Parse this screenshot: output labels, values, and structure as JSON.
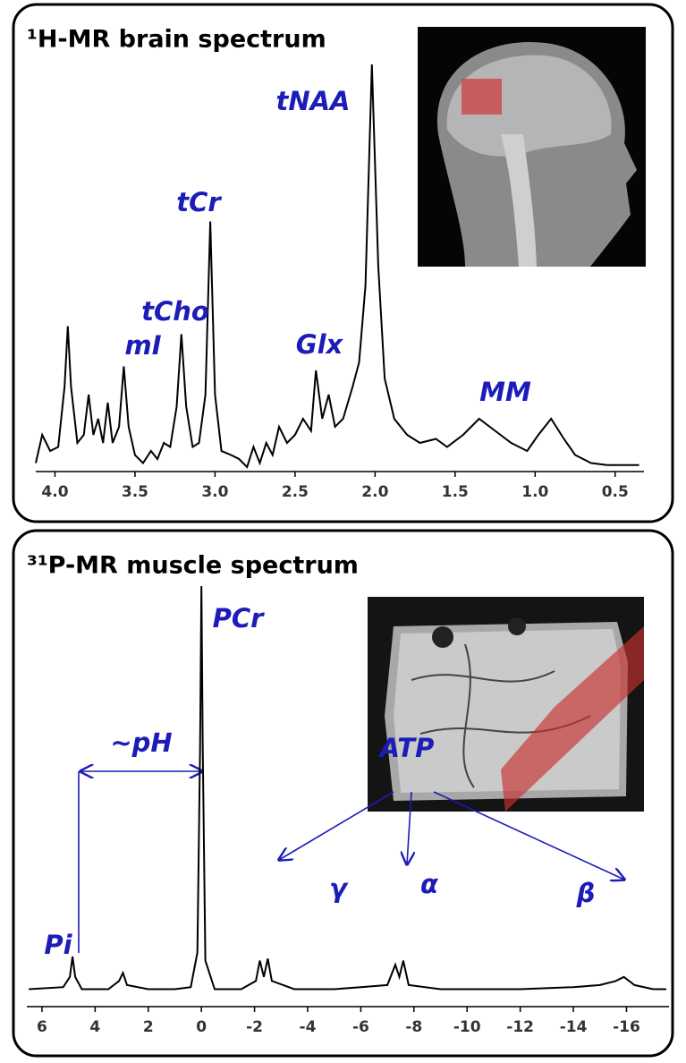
{
  "chart_data": [
    {
      "type": "line",
      "title": "¹H-MR brain spectrum",
      "x": [
        4.12,
        4.08,
        4.03,
        3.98,
        3.94,
        3.92,
        3.9,
        3.86,
        3.82,
        3.79,
        3.76,
        3.73,
        3.7,
        3.67,
        3.64,
        3.6,
        3.57,
        3.54,
        3.5,
        3.45,
        3.4,
        3.36,
        3.32,
        3.28,
        3.24,
        3.21,
        3.18,
        3.14,
        3.1,
        3.06,
        3.03,
        3.0,
        2.96,
        2.9,
        2.85,
        2.8,
        2.76,
        2.72,
        2.68,
        2.64,
        2.6,
        2.55,
        2.5,
        2.45,
        2.4,
        2.37,
        2.33,
        2.29,
        2.25,
        2.2,
        2.14,
        2.1,
        2.06,
        2.02,
        1.98,
        1.94,
        1.88,
        1.8,
        1.72,
        1.62,
        1.55,
        1.45,
        1.35,
        1.25,
        1.15,
        1.05,
        0.98,
        0.9,
        0.82,
        0.75,
        0.65,
        0.55,
        0.45,
        0.35
      ],
      "series": [
        {
          "color": "#000000",
          "values": [
            1,
            8,
            4,
            5,
            20,
            35,
            20,
            6,
            8,
            18,
            8,
            12,
            6,
            16,
            6,
            10,
            25,
            10,
            3,
            1,
            4,
            2,
            6,
            5,
            15,
            33,
            15,
            5,
            6,
            18,
            61,
            18,
            4,
            3,
            2,
            0,
            5,
            1,
            6,
            3,
            10,
            6,
            8,
            12,
            9,
            24,
            12,
            18,
            10,
            12,
            20,
            26,
            45,
            100,
            50,
            22,
            12,
            8,
            6,
            7,
            5,
            8,
            12,
            9,
            6,
            4,
            8,
            12,
            7,
            3,
            1,
            0.5,
            0.5,
            0.5
          ]
        }
      ],
      "xlim": [
        4.12,
        0.32
      ],
      "xticks": [
        {
          "value": 4,
          "label": "4.0"
        },
        3.5,
        {
          "value": 3,
          "label": "3.0"
        },
        2.5,
        {
          "value": 2,
          "label": "2.0"
        },
        1.5,
        {
          "value": 1,
          "label": "1.0"
        },
        0.5
      ],
      "ylim": [
        0,
        100
      ],
      "annotations": [
        "tNAA",
        "tCr",
        "tCho",
        "mI",
        "Glx",
        "MM"
      ]
    },
    {
      "type": "line",
      "title": "³¹P-MR muscle spectrum",
      "x": [
        6.5,
        5.2,
        4.95,
        4.85,
        4.75,
        4.5,
        3.5,
        3.1,
        2.95,
        2.8,
        2.0,
        1.0,
        0.4,
        0.15,
        0.05,
        0,
        -0.05,
        -0.15,
        -0.5,
        -1.5,
        -2.05,
        -2.2,
        -2.35,
        -2.5,
        -2.65,
        -3.5,
        -5,
        -6,
        -7,
        -7.3,
        -7.45,
        -7.6,
        -7.8,
        -9,
        -12,
        -14,
        -15,
        -15.6,
        -15.9,
        -16.3,
        -17,
        -17.5
      ],
      "series": [
        {
          "color": "#000000",
          "values": [
            1,
            1.5,
            4,
            9,
            4,
            1,
            1,
            3,
            5,
            2,
            1,
            1,
            1.5,
            10,
            60,
            100,
            60,
            8,
            1,
            1,
            3,
            8,
            4,
            8.5,
            3,
            1,
            1,
            1.5,
            2,
            7,
            4,
            8,
            2,
            1,
            1,
            1.5,
            2,
            3,
            4,
            2,
            1,
            1
          ]
        }
      ],
      "xlim": [
        6.57,
        -17.6
      ],
      "xticks": [
        6,
        4,
        2,
        0,
        -2,
        -4,
        -6,
        -8,
        -10,
        -12,
        -14,
        -16
      ],
      "ylim": [
        0,
        100
      ],
      "annotations": [
        "PCr",
        "~pH",
        "ATP",
        "γ",
        "α",
        "β",
        "Pi"
      ]
    }
  ]
}
